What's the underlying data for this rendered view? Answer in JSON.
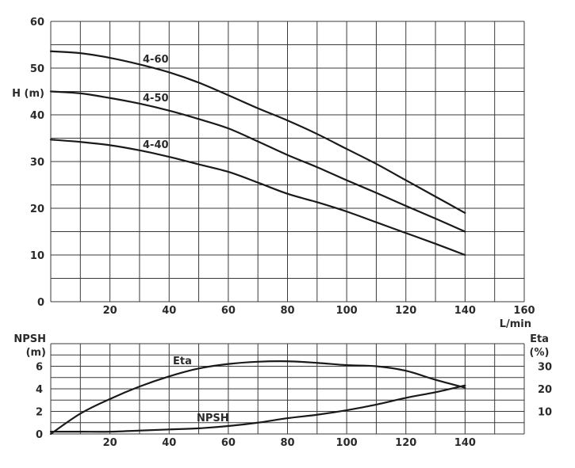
{
  "chart_data": [
    {
      "type": "line",
      "title": "",
      "xlabel": "L/min",
      "ylabel": "H (m)",
      "xlim": [
        0,
        160
      ],
      "ylim": [
        0,
        60
      ],
      "x_ticks": [
        0,
        20,
        40,
        60,
        80,
        100,
        120,
        140,
        160
      ],
      "y_ticks": [
        0,
        10,
        20,
        30,
        40,
        50,
        60
      ],
      "grid": true,
      "x": [
        0,
        10,
        20,
        30,
        40,
        50,
        60,
        70,
        80,
        90,
        100,
        110,
        120,
        130,
        140
      ],
      "series": [
        {
          "name": "4-60",
          "values": [
            53.6,
            53.2,
            52.2,
            50.8,
            49.1,
            46.9,
            44.2,
            41.4,
            38.8,
            35.9,
            32.7,
            29.5,
            26.0,
            22.5,
            19.0
          ]
        },
        {
          "name": "4-50",
          "values": [
            45.0,
            44.6,
            43.6,
            42.4,
            40.9,
            39.1,
            37.1,
            34.3,
            31.4,
            28.8,
            26.0,
            23.3,
            20.5,
            17.8,
            15.0
          ]
        },
        {
          "name": "4-40",
          "values": [
            34.7,
            34.2,
            33.5,
            32.4,
            31.0,
            29.4,
            27.8,
            25.5,
            23.1,
            21.3,
            19.3,
            17.0,
            14.7,
            12.4,
            10.0
          ]
        }
      ],
      "annotations": [
        "4-60",
        "4-50",
        "4-40"
      ]
    },
    {
      "type": "line",
      "title": "",
      "xlabel": "",
      "ylabel": "NPSH (m)",
      "y2label": "Eta (%)",
      "xlim": [
        0,
        160
      ],
      "ylim": [
        0,
        8
      ],
      "y2lim": [
        0,
        40
      ],
      "x_ticks": [
        20,
        40,
        60,
        80,
        100,
        120,
        140
      ],
      "y_ticks": [
        0,
        2,
        4,
        6
      ],
      "y2_ticks": [
        10,
        20,
        30
      ],
      "grid": true,
      "x": [
        0,
        10,
        20,
        30,
        40,
        50,
        60,
        70,
        80,
        90,
        100,
        110,
        120,
        130,
        140
      ],
      "series": [
        {
          "name": "Eta",
          "axis": "right",
          "values": [
            0,
            9,
            15.5,
            21,
            25.5,
            29,
            31,
            32,
            32.2,
            31.5,
            30.5,
            30,
            28,
            24,
            20.5
          ]
        },
        {
          "name": "NPSH",
          "axis": "left",
          "values": [
            0.2,
            0.2,
            0.2,
            0.3,
            0.4,
            0.5,
            0.7,
            1.0,
            1.4,
            1.7,
            2.1,
            2.6,
            3.2,
            3.7,
            4.3
          ]
        }
      ],
      "annotations": [
        "Eta",
        "NPSH"
      ]
    }
  ],
  "labels": {
    "top_ylabel": "H (m)",
    "top_xlabel": "L/min",
    "bottom_ylabel_1": "NPSH",
    "bottom_ylabel_2": "(m)",
    "bottom_y2label_1": "Eta",
    "bottom_y2label_2": "(%)"
  }
}
